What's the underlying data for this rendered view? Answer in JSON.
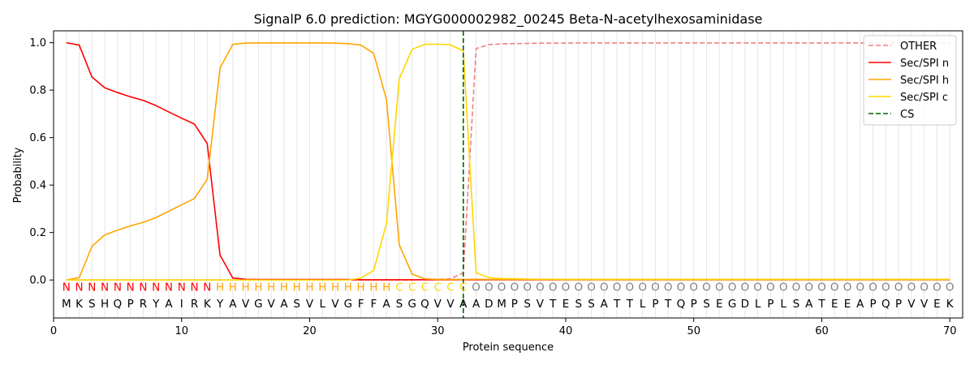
{
  "chart_data": {
    "type": "line",
    "title": "SignalP 6.0 prediction: MGYG000002982_00245 Beta-N-acetylhexosaminidase",
    "xlabel": "Protein sequence",
    "ylabel": "Probability",
    "xlim": [
      0,
      71
    ],
    "ylim": [
      -0.16,
      1.05
    ],
    "xticks": [
      0,
      10,
      20,
      30,
      40,
      50,
      60,
      70
    ],
    "yticks": [
      0.0,
      0.2,
      0.4,
      0.6,
      0.8,
      1.0
    ],
    "ytick_labels": [
      "0.0",
      "0.2",
      "0.4",
      "0.6",
      "0.8",
      "1.0"
    ],
    "grid": "vertical lines at each residue",
    "legend_position": "top-right",
    "sequence": [
      "M",
      "K",
      "S",
      "H",
      "Q",
      "P",
      "R",
      "Y",
      "A",
      "I",
      "R",
      "K",
      "Y",
      "A",
      "V",
      "G",
      "V",
      "A",
      "S",
      "V",
      "L",
      "V",
      "G",
      "F",
      "F",
      "A",
      "S",
      "G",
      "Q",
      "V",
      "V",
      "A",
      "A",
      "D",
      "M",
      "P",
      "S",
      "V",
      "T",
      "E",
      "S",
      "S",
      "A",
      "T",
      "T",
      "L",
      "P",
      "T",
      "Q",
      "P",
      "S",
      "E",
      "G",
      "D",
      "L",
      "P",
      "L",
      "S",
      "A",
      "T",
      "E",
      "E",
      "A",
      "P",
      "Q",
      "P",
      "V",
      "V",
      "E",
      "K"
    ],
    "labels": [
      "N",
      "N",
      "N",
      "N",
      "N",
      "N",
      "N",
      "N",
      "N",
      "N",
      "N",
      "N",
      "H",
      "H",
      "H",
      "H",
      "H",
      "H",
      "H",
      "H",
      "H",
      "H",
      "H",
      "H",
      "H",
      "H",
      "C",
      "C",
      "C",
      "C",
      "C",
      "C",
      "O",
      "O",
      "O",
      "O",
      "O",
      "O",
      "O",
      "O",
      "O",
      "O",
      "O",
      "O",
      "O",
      "O",
      "O",
      "O",
      "O",
      "O",
      "O",
      "O",
      "O",
      "O",
      "O",
      "O",
      "O",
      "O",
      "O",
      "O",
      "O",
      "O",
      "O",
      "O",
      "O",
      "O",
      "O",
      "O",
      "O",
      "O"
    ],
    "label_colors": {
      "N": "#ff0000",
      "H": "#ffa500",
      "C": "#ffd700",
      "O": "#808080"
    },
    "cleavage_site": 32,
    "series": [
      {
        "name": "OTHER",
        "color": "#f08080",
        "dash": "dashed",
        "values": [
          0,
          0,
          0,
          0,
          0,
          0,
          0,
          0,
          0,
          0,
          0,
          0,
          0,
          0,
          0,
          0,
          0,
          0,
          0,
          0,
          0,
          0,
          0,
          0,
          0,
          0,
          0,
          0,
          0.002,
          0.003,
          0.005,
          0.03,
          0.975,
          0.992,
          0.995,
          0.996,
          0.997,
          0.998,
          0.998,
          0.998,
          0.999,
          0.999,
          0.999,
          0.999,
          0.999,
          0.999,
          0.999,
          0.999,
          0.999,
          0.999,
          0.999,
          0.999,
          0.999,
          0.999,
          0.999,
          0.999,
          0.999,
          0.999,
          0.999,
          0.999,
          0.999,
          0.999,
          0.999,
          0.999,
          0.999,
          0.999,
          0.999,
          0.999,
          0.999,
          0.999
        ]
      },
      {
        "name": "Sec/SPI n",
        "color": "#ff0000",
        "dash": "solid",
        "values": [
          1.0,
          0.99,
          0.855,
          0.81,
          0.79,
          0.772,
          0.757,
          0.735,
          0.708,
          0.682,
          0.657,
          0.575,
          0.105,
          0.008,
          0.003,
          0.002,
          0.002,
          0.002,
          0.002,
          0.002,
          0.002,
          0.002,
          0.002,
          0.001,
          0.001,
          0.001,
          0.001,
          0.001,
          0.001,
          0.001,
          0.001,
          0.001,
          0.001,
          0.001,
          0.001,
          0.001,
          0.001,
          0.001,
          0.001,
          0.001,
          0.001,
          0.001,
          0.001,
          0.001,
          0.001,
          0.001,
          0.001,
          0.001,
          0.001,
          0.001,
          0.001,
          0.001,
          0.001,
          0.001,
          0.001,
          0.001,
          0.001,
          0.001,
          0.001,
          0.001,
          0.001,
          0.001,
          0.001,
          0.001,
          0.001,
          0.001,
          0.001,
          0.001,
          0.001,
          0.001
        ]
      },
      {
        "name": "Sec/SPI h",
        "color": "#ffa500",
        "dash": "solid",
        "values": [
          0.0,
          0.01,
          0.142,
          0.19,
          0.21,
          0.228,
          0.243,
          0.263,
          0.29,
          0.317,
          0.343,
          0.425,
          0.893,
          0.993,
          0.998,
          0.999,
          0.999,
          0.999,
          0.999,
          0.999,
          0.999,
          0.998,
          0.996,
          0.99,
          0.955,
          0.76,
          0.148,
          0.025,
          0.005,
          0.002,
          0.002,
          0.002,
          0.003,
          0.002,
          0.002,
          0.002,
          0.002,
          0.002,
          0.002,
          0.002,
          0.002,
          0.002,
          0.002,
          0.002,
          0.002,
          0.002,
          0.002,
          0.002,
          0.002,
          0.002,
          0.002,
          0.002,
          0.002,
          0.002,
          0.002,
          0.002,
          0.002,
          0.002,
          0.002,
          0.002,
          0.002,
          0.002,
          0.002,
          0.002,
          0.002,
          0.002,
          0.002,
          0.002,
          0.002,
          0.002
        ]
      },
      {
        "name": "Sec/SPI c",
        "color": "#ffd700",
        "dash": "solid",
        "values": [
          0,
          0,
          0,
          0,
          0,
          0,
          0,
          0,
          0,
          0,
          0,
          0,
          0,
          0,
          0,
          0,
          0,
          0,
          0,
          0,
          0,
          0,
          0,
          0.008,
          0.04,
          0.238,
          0.848,
          0.972,
          0.993,
          0.994,
          0.991,
          0.965,
          0.03,
          0.01,
          0.006,
          0.005,
          0.004,
          0.003,
          0.003,
          0.002,
          0.002,
          0.002,
          0.002,
          0.002,
          0.002,
          0.002,
          0.002,
          0.002,
          0.002,
          0.002,
          0.002,
          0.002,
          0.002,
          0.002,
          0.002,
          0.002,
          0.002,
          0.002,
          0.002,
          0.002,
          0.002,
          0.002,
          0.002,
          0.002,
          0.002,
          0.002,
          0.002,
          0.002,
          0.002,
          0.002
        ]
      }
    ],
    "legend": [
      {
        "name": "OTHER",
        "color": "#f08080",
        "dash": "dashed"
      },
      {
        "name": "Sec/SPI n",
        "color": "#ff0000",
        "dash": "solid"
      },
      {
        "name": "Sec/SPI h",
        "color": "#ffa500",
        "dash": "solid"
      },
      {
        "name": "Sec/SPI c",
        "color": "#ffd700",
        "dash": "solid"
      },
      {
        "name": "CS",
        "color": "#006400",
        "dash": "dashed"
      }
    ]
  }
}
